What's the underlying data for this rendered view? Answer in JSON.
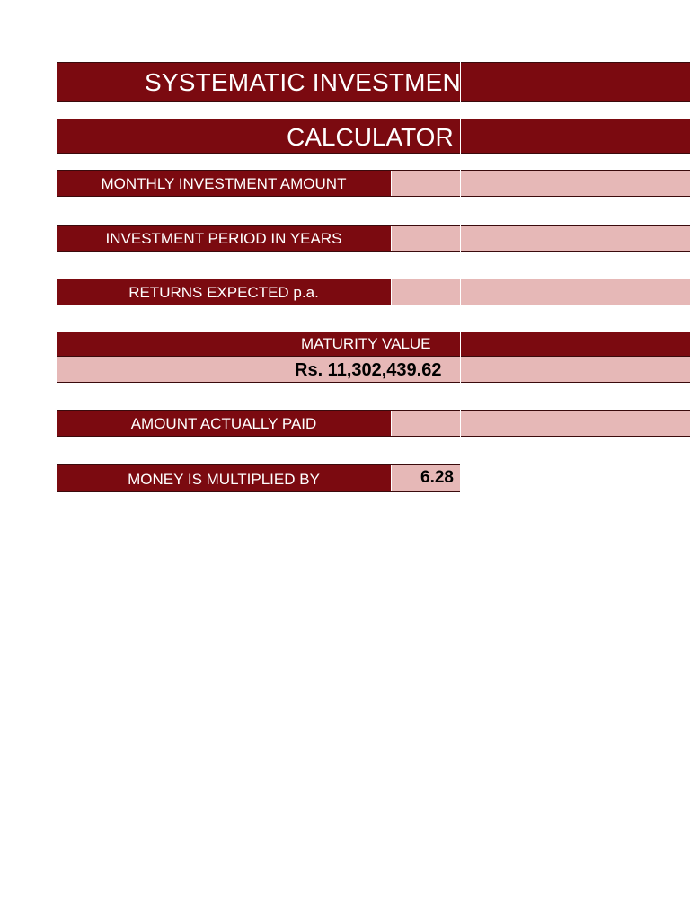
{
  "calculator": {
    "title": "SYSTEMATIC INVESTMENT PLAN",
    "subtitle": "CALCULATOR",
    "rows": {
      "monthly_investment": {
        "label": "MONTHLY INVESTMENT AMOUNT",
        "value": ""
      },
      "investment_period": {
        "label": "INVESTMENT PERIOD IN YEARS",
        "value": ""
      },
      "returns_expected": {
        "label": "RETURNS EXPECTED p.a.",
        "value": ""
      },
      "amount_paid": {
        "label": "AMOUNT ACTUALLY PAID",
        "value": ""
      },
      "multiplier": {
        "label": "MONEY IS MULTIPLIED BY",
        "value": "6.28"
      }
    },
    "maturity": {
      "label": "MATURITY VALUE",
      "value": "Rs. 11,302,439.62"
    }
  },
  "colors": {
    "header_fill": "#7b0a10",
    "input_fill": "#e6b8b7",
    "text_light": "#ffffff",
    "text_dark": "#000000"
  }
}
